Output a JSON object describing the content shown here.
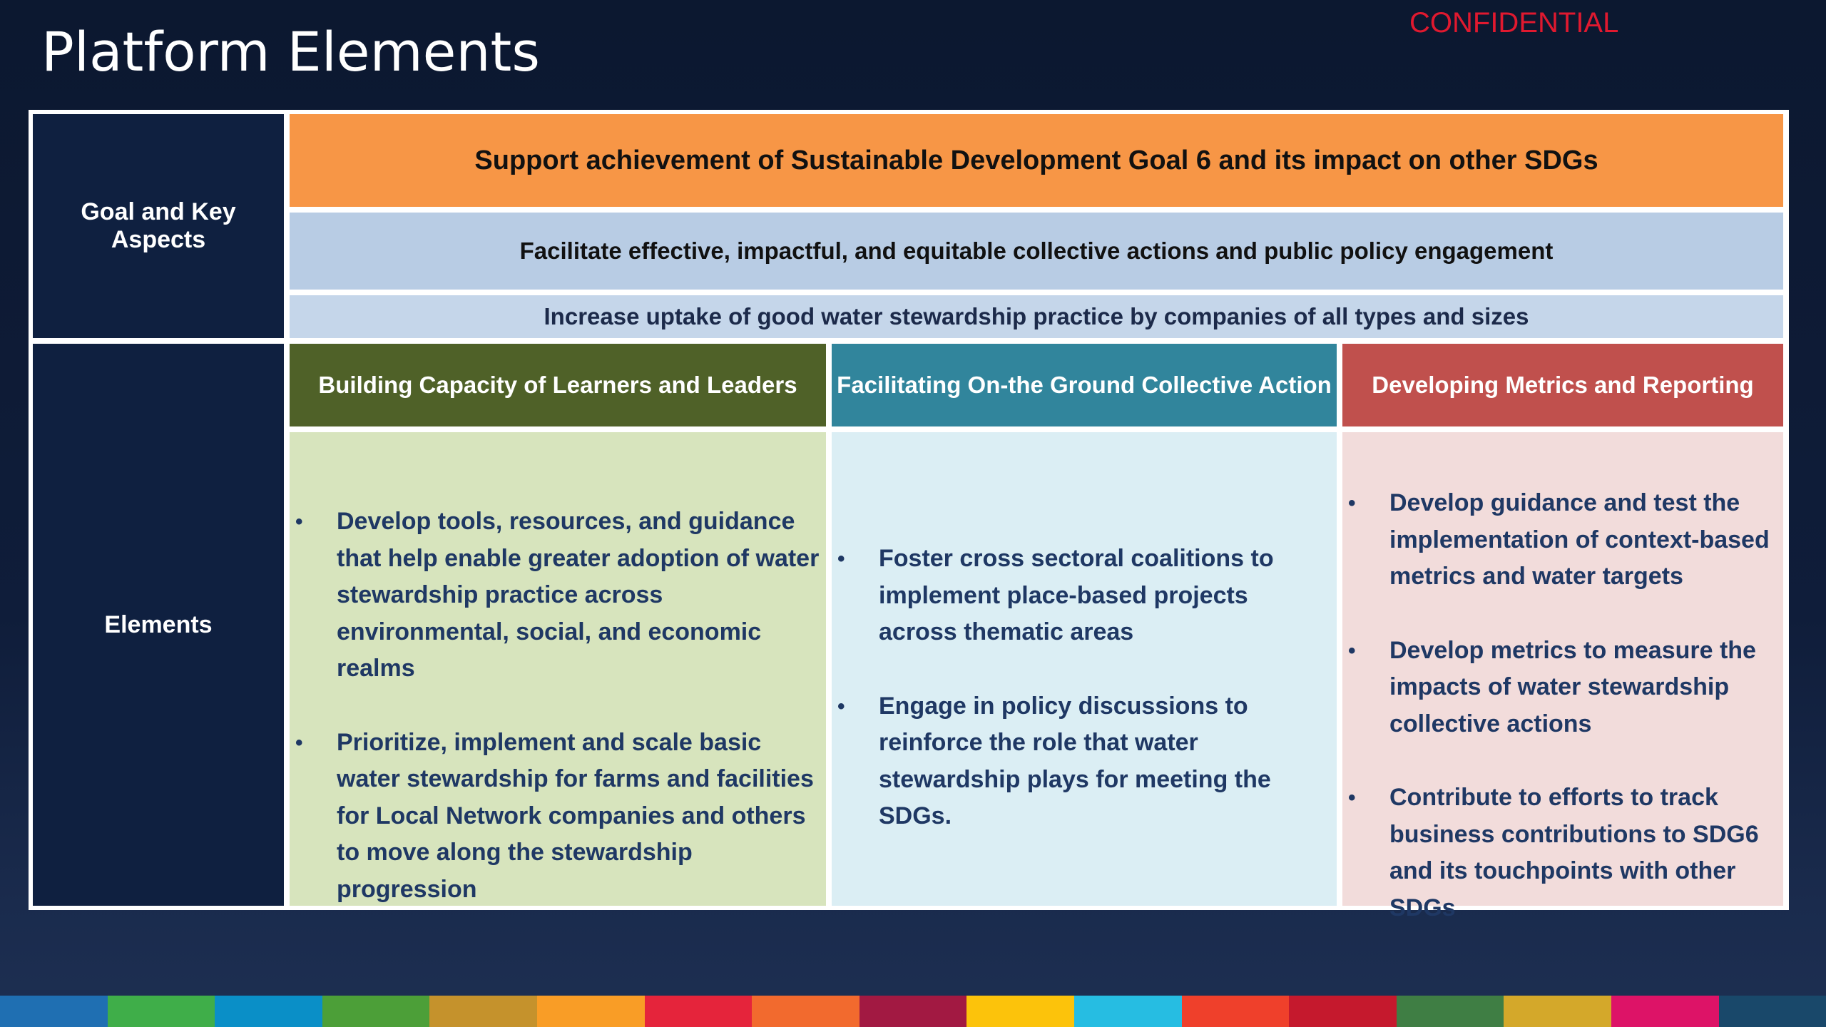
{
  "slide": {
    "title": "Platform Elements",
    "confidential": "CONFIDENTIAL"
  },
  "table": {
    "goal_label": "Goal and Key Aspects",
    "elements_label": "Elements",
    "goal": "Support achievement of Sustainable Development Goal 6 and its impact on other SDGs",
    "aspect_1": "Facilitate effective, impactful, and equitable collective actions and public policy engagement",
    "aspect_2": "Increase uptake of good water stewardship practice by companies of all types and sizes",
    "columns": [
      {
        "heading": "Building Capacity of Learners and Leaders",
        "bullets": [
          "Develop tools, resources, and guidance that help enable greater adoption of water stewardship practice across environmental, social, and economic realms",
          "Prioritize, implement and scale basic water stewardship for farms and facilities for Local Network companies and others to move along the stewardship progression"
        ]
      },
      {
        "heading": "Facilitating On-the Ground Collective Action",
        "bullets": [
          "Foster cross sectoral coalitions to implement place-based projects across thematic areas",
          "Engage in policy discussions to reinforce the role that water stewardship plays for meeting the SDGs."
        ]
      },
      {
        "heading": "Developing Metrics and Reporting",
        "bullets": [
          "Develop guidance and test the implementation of context-based metrics and water targets",
          "Develop metrics to measure the impacts of water stewardship collective actions",
          "Contribute to efforts to track business contributions to SDG6 and its touchpoints with other SDGs"
        ]
      }
    ],
    "bullet_glyph": "•"
  },
  "colors": {
    "goal_bar": "#f79646",
    "aspect_bar": "#b8cce4",
    "col1_head": "#4f6128",
    "col2_head": "#31859c",
    "col3_head": "#c0504d",
    "sdg_strip": [
      "#1f6fb2",
      "#3fae49",
      "#0a8fc7",
      "#4c9f38",
      "#c5922c",
      "#f99d26",
      "#e5243b",
      "#f26a2e",
      "#a21942",
      "#fcc30b",
      "#26bde2",
      "#ef402b",
      "#c5192d",
      "#3f7e44",
      "#d4a82a",
      "#dd1367",
      "#19486a"
    ]
  }
}
